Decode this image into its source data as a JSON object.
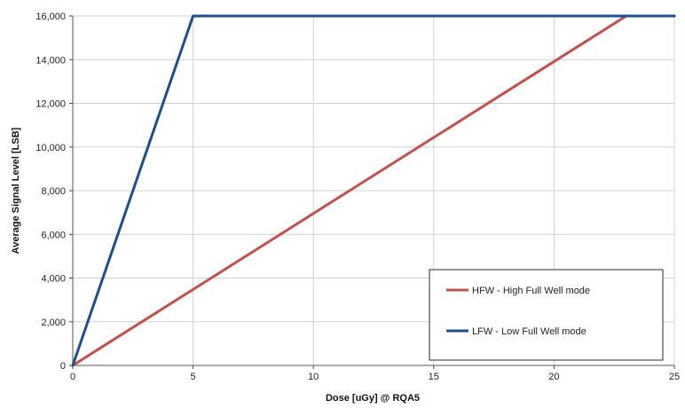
{
  "chart_data": {
    "type": "line",
    "title": "",
    "xlabel": "Dose [uGy] @ RQA5",
    "ylabel": "Average Signal Level [LSB]",
    "xlim": [
      0,
      25
    ],
    "ylim": [
      0,
      16000
    ],
    "x_ticks": [
      "0",
      "5",
      "10",
      "15",
      "20",
      "25"
    ],
    "y_ticks": [
      "0",
      "2,000",
      "4,000",
      "6,000",
      "8,000",
      "10,000",
      "12,000",
      "14,000",
      "16,000"
    ],
    "grid": true,
    "legend_position": "bottom-right",
    "series": [
      {
        "name": "HFW - High Full Well mode",
        "color": "#c0504d",
        "x": [
          0,
          23,
          25
        ],
        "y": [
          0,
          16000,
          16000
        ]
      },
      {
        "name": "LFW - Low Full Well mode",
        "color": "#1f4e8c",
        "x": [
          0,
          5,
          25
        ],
        "y": [
          0,
          16000,
          16000
        ]
      }
    ]
  }
}
